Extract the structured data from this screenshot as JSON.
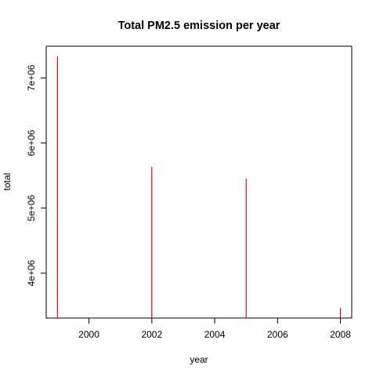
{
  "chart_data": {
    "type": "bar",
    "style": "vertical-lines",
    "title": "Total PM2.5 emission per year",
    "xlabel": "year",
    "ylabel": "total",
    "x": [
      1999,
      2002,
      2005,
      2008
    ],
    "values": [
      7332967,
      5635780,
      5454703,
      3464206
    ],
    "xlim": [
      1999,
      2008
    ],
    "ylim": [
      3464206,
      7332967
    ],
    "xticks": [
      2000,
      2002,
      2004,
      2006,
      2008
    ],
    "xtick_labels": [
      "2000",
      "2002",
      "2004",
      "2006",
      "2008"
    ],
    "yticks": [
      4000000,
      5000000,
      6000000,
      7000000
    ],
    "ytick_labels": [
      "4e+06",
      "5e+06",
      "6e+06",
      "7e+06"
    ],
    "color": "#e8001c",
    "grid": false,
    "legend": "none"
  }
}
